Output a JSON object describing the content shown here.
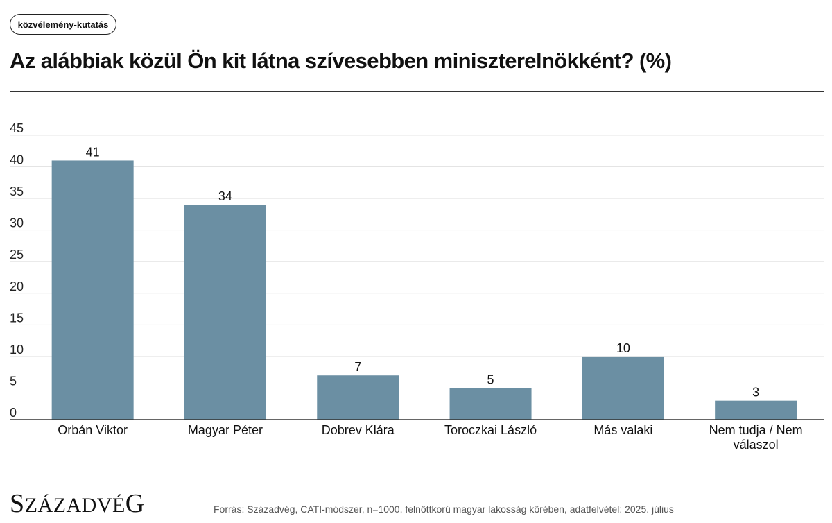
{
  "tag": "közvélemény-kutatás",
  "title": "Az alábbiak közül Ön kit látna szívesebben miniszterelnökként? (%)",
  "colors": {
    "bar": "#6b8fa3",
    "grid": "#e4e4e4",
    "axis": "#333333"
  },
  "chart_data": {
    "type": "bar",
    "categories": [
      [
        "Orbán Viktor"
      ],
      [
        "Magyar Péter"
      ],
      [
        "Dobrev Klára"
      ],
      [
        "Toroczkai László"
      ],
      [
        "Más valaki"
      ],
      [
        "Nem tudja / Nem",
        "válaszol"
      ]
    ],
    "values": [
      41,
      34,
      7,
      5,
      10,
      3
    ],
    "ylim": [
      0,
      45
    ],
    "yticks": [
      0,
      5,
      10,
      15,
      20,
      25,
      30,
      35,
      40,
      45
    ],
    "xlabel": "",
    "ylabel": "",
    "grid": true,
    "data_labels": true
  },
  "footer": {
    "logo_text": "Századvég",
    "source": "Forrás: Századvég, CATI-módszer, n=1000, felnőttkorú magyar lakosság körében, adatfelvétel: 2025. július"
  }
}
